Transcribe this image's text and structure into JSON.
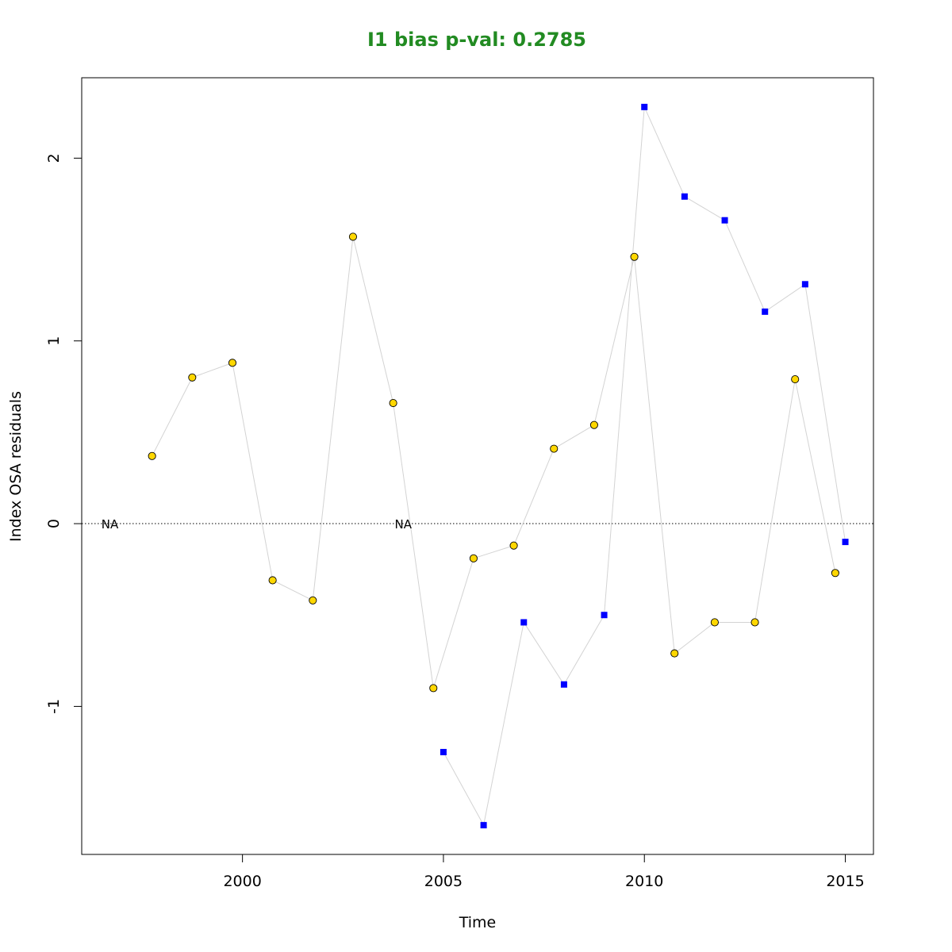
{
  "chart_data": {
    "type": "line",
    "title": "I1 bias p-val: 0.2785",
    "title_color": "#228B22",
    "xlabel": "Time",
    "ylabel": "Index OSA residuals",
    "xlim": [
      1996,
      2015.7
    ],
    "ylim": [
      -1.81,
      2.44
    ],
    "xticks": [
      2000,
      2005,
      2010,
      2015
    ],
    "yticks": [
      -1,
      0,
      1,
      2
    ],
    "reference_line": 0,
    "grid": false,
    "line_color": "#d3d3d3",
    "series": [
      {
        "marker": "circle",
        "fill": "#FFD700",
        "points": [
          {
            "x": 1996.75,
            "y": null
          },
          {
            "x": 1997.75,
            "y": 0.37
          },
          {
            "x": 1998.75,
            "y": 0.8
          },
          {
            "x": 1999.75,
            "y": 0.88
          },
          {
            "x": 2000.75,
            "y": -0.31
          },
          {
            "x": 2001.75,
            "y": -0.42
          },
          {
            "x": 2002.75,
            "y": 1.57
          },
          {
            "x": 2003.75,
            "y": 0.66
          },
          {
            "x": 2004.75,
            "y": -0.9
          },
          {
            "x": 2005.75,
            "y": -0.19
          },
          {
            "x": 2006.75,
            "y": -0.12
          },
          {
            "x": 2007.75,
            "y": 0.41
          },
          {
            "x": 2008.75,
            "y": 0.54
          },
          {
            "x": 2009.75,
            "y": 1.46
          },
          {
            "x": 2010.75,
            "y": -0.71
          },
          {
            "x": 2011.75,
            "y": -0.54
          },
          {
            "x": 2012.75,
            "y": -0.54
          },
          {
            "x": 2013.75,
            "y": 0.79
          },
          {
            "x": 2014.75,
            "y": -0.27
          }
        ]
      },
      {
        "marker": "square",
        "fill": "#0000FF",
        "points": [
          {
            "x": 2004.0,
            "y": null
          },
          {
            "x": 2005.0,
            "y": -1.25
          },
          {
            "x": 2006.0,
            "y": -1.65
          },
          {
            "x": 2007.0,
            "y": -0.54
          },
          {
            "x": 2008.0,
            "y": -0.88
          },
          {
            "x": 2009.0,
            "y": -0.5
          },
          {
            "x": 2010.0,
            "y": 2.28
          },
          {
            "x": 2011.0,
            "y": 1.79
          },
          {
            "x": 2012.0,
            "y": 1.66
          },
          {
            "x": 2013.0,
            "y": 1.16
          },
          {
            "x": 2014.0,
            "y": 1.31
          },
          {
            "x": 2015.0,
            "y": -0.1
          }
        ]
      }
    ],
    "na_labels": [
      {
        "x": 1996.7,
        "text": "NA"
      },
      {
        "x": 2004.0,
        "text": "NA"
      }
    ]
  }
}
